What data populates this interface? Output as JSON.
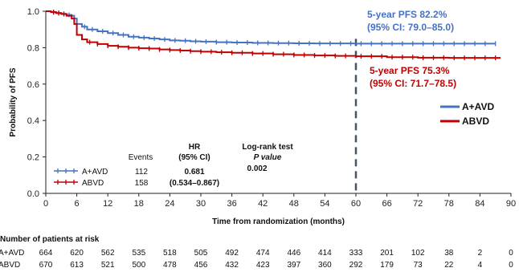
{
  "chart_data": {
    "type": "line",
    "subtype": "kaplan-meier",
    "ylabel": "Probability of PFS",
    "xlabel": "Time from randomization (months)",
    "xlim": [
      0,
      90
    ],
    "ylim": [
      0,
      1.0
    ],
    "xticks": [
      0,
      6,
      12,
      18,
      24,
      30,
      36,
      42,
      48,
      54,
      60,
      66,
      72,
      78,
      84,
      90
    ],
    "yticks": [
      0.0,
      0.2,
      0.4,
      0.6,
      0.8,
      1.0
    ],
    "xtick_labels": [
      "0",
      "6",
      "12",
      "18",
      "24",
      "30",
      "36",
      "42",
      "48",
      "54",
      "60",
      "66",
      "72",
      "78",
      "84",
      "90"
    ],
    "ytick_labels": [
      "0.0",
      "0.2",
      "0.4",
      "0.6",
      "0.8",
      "1.0"
    ],
    "grid": false,
    "reference_line": {
      "x": 60
    },
    "colors": {
      "A+AVD": "#4472c4",
      "ABVD": "#c00000",
      "refline": "#44546a"
    },
    "series": [
      {
        "name": "A+AVD",
        "color": "#4472c4",
        "x": [
          0,
          1,
          2,
          3,
          4,
          5,
          5.5,
          6,
          7,
          8,
          10,
          12,
          14,
          16,
          18,
          20,
          22,
          24,
          26,
          28,
          30,
          33,
          36,
          40,
          44,
          48,
          52,
          56,
          60,
          66,
          72,
          78,
          84,
          87
        ],
        "y": [
          1.0,
          0.995,
          0.99,
          0.985,
          0.98,
          0.975,
          0.96,
          0.93,
          0.915,
          0.9,
          0.89,
          0.88,
          0.87,
          0.86,
          0.855,
          0.85,
          0.845,
          0.84,
          0.838,
          0.835,
          0.833,
          0.83,
          0.828,
          0.826,
          0.825,
          0.824,
          0.823,
          0.823,
          0.822,
          0.822,
          0.822,
          0.822,
          0.822,
          0.822
        ],
        "censor_x": [
          1.5,
          2.5,
          3.5,
          4.5,
          7.5,
          9,
          11,
          13,
          15,
          17,
          19,
          21,
          23,
          25,
          27,
          29,
          31,
          33,
          35,
          37,
          39,
          41,
          43,
          45,
          47,
          49,
          51,
          53,
          55,
          57,
          59,
          61,
          63,
          65,
          67,
          69,
          71,
          73,
          75,
          77,
          79,
          81,
          83,
          85,
          87
        ]
      },
      {
        "name": "ABVD",
        "color": "#c00000",
        "x": [
          0,
          1,
          2,
          3,
          4,
          5,
          5.5,
          6,
          7,
          8,
          10,
          12,
          14,
          16,
          18,
          20,
          22,
          24,
          26,
          28,
          30,
          33,
          36,
          40,
          44,
          48,
          52,
          56,
          60,
          66,
          72,
          78,
          84,
          88
        ],
        "y": [
          1.0,
          0.995,
          0.99,
          0.985,
          0.975,
          0.96,
          0.93,
          0.87,
          0.845,
          0.83,
          0.82,
          0.81,
          0.805,
          0.8,
          0.797,
          0.795,
          0.79,
          0.787,
          0.784,
          0.781,
          0.778,
          0.775,
          0.772,
          0.768,
          0.764,
          0.76,
          0.757,
          0.755,
          0.753,
          0.748,
          0.745,
          0.744,
          0.744,
          0.744
        ],
        "censor_x": [
          1.5,
          2.5,
          3.5,
          8.5,
          10,
          12,
          14,
          16,
          18,
          20,
          22,
          24,
          26,
          28,
          30,
          32,
          34,
          36,
          38,
          40,
          42,
          44,
          46,
          48,
          50,
          52,
          54,
          56,
          58,
          61,
          63,
          65,
          67,
          69,
          71,
          73,
          75,
          77,
          79,
          81,
          83,
          85,
          87
        ]
      }
    ],
    "annotations": {
      "aavd_line1": "5-year PFS 82.2%",
      "aavd_line2": "(95% CI: 79.0–85.0)",
      "abvd_line1": "5-year PFS 75.3%",
      "abvd_line2": "(95% CI: 71.7–78.5)"
    },
    "legend": {
      "placement": "right",
      "entries": [
        "A+AVD",
        "ABVD"
      ]
    },
    "stats_table": {
      "headers": {
        "events": "Events",
        "hr_line1": "HR",
        "hr_line2": "(95% CI)",
        "lr_line1": "Log-rank test",
        "lr_line2": "P value"
      },
      "rows": [
        {
          "arm": "A+AVD",
          "events": "112",
          "hr": "0.681",
          "p": "0.002"
        },
        {
          "arm": "ABVD",
          "events": "158",
          "hr": "(0.534–0.867)",
          "p": ""
        }
      ]
    },
    "at_risk": {
      "title": "Number of patients at risk",
      "rows": [
        {
          "arm": "A+AVD",
          "counts": [
            "664",
            "620",
            "562",
            "535",
            "518",
            "505",
            "492",
            "474",
            "446",
            "414",
            "333",
            "201",
            "102",
            "38",
            "2",
            "0"
          ]
        },
        {
          "arm": "ABVD",
          "counts": [
            "670",
            "613",
            "521",
            "500",
            "478",
            "456",
            "432",
            "423",
            "397",
            "360",
            "292",
            "179",
            "73",
            "22",
            "4",
            "0"
          ]
        }
      ]
    }
  }
}
